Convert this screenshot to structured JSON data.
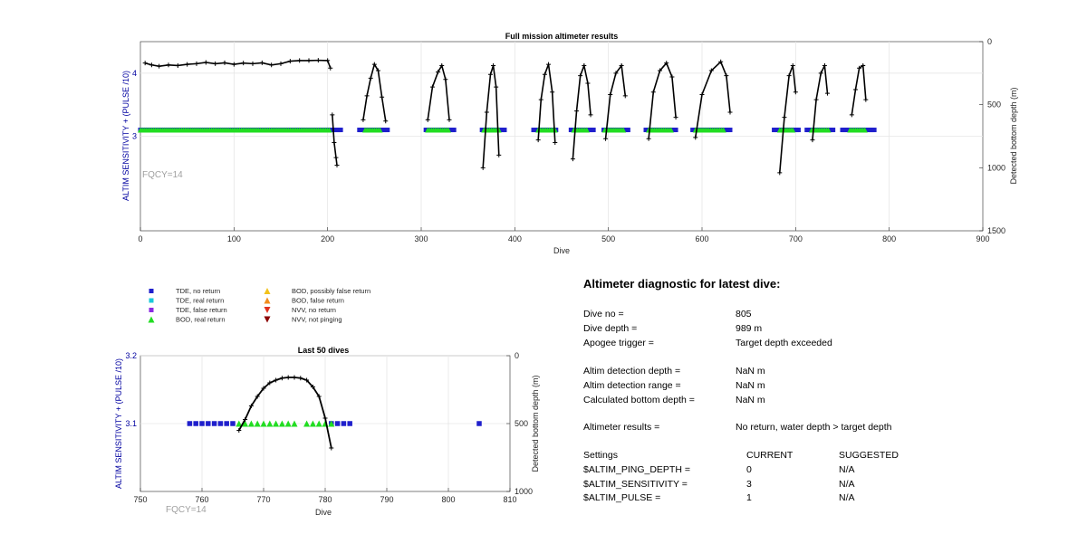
{
  "colors": {
    "tde_no": "#1f1fcc",
    "tde_real": "#19c9d9",
    "tde_false": "#8a2be2",
    "bod_real": "#22dd22",
    "bod_possibly_false": "#f2c21b",
    "bod_false": "#f28c1b",
    "nvv_no": "#e0301e",
    "nvv_not": "#8b0000",
    "line": "#000000",
    "grid": "#e6e6e6",
    "left_axis": "#0000a0"
  },
  "top_chart": {
    "title": "Full mission altimeter results",
    "xlabel": "Dive",
    "ylabel_left": "ALTIM SENSITIVITY + (PULSE /10)",
    "ylabel_right": "Detected bottom depth (m)",
    "xticks": [
      "0",
      "100",
      "200",
      "300",
      "400",
      "500",
      "600",
      "700",
      "800",
      "900"
    ],
    "yticks_left": [
      "3",
      "4"
    ],
    "yticks_right": [
      "0",
      "500",
      "1000",
      "1500"
    ],
    "fqcy": "FQCY=14"
  },
  "bottom_chart": {
    "title": "Last 50 dives",
    "xlabel": "Dive",
    "ylabel_left": "ALTIM SENSITIVITY + (PULSE /10)",
    "ylabel_right": "Detected bottom depth (m)",
    "xticks": [
      "750",
      "760",
      "770",
      "780",
      "790",
      "800",
      "810"
    ],
    "yticks_left": [
      "3.1",
      "3.2"
    ],
    "yticks_right": [
      "0",
      "500",
      "1000"
    ],
    "fqcy": "FQCY=14"
  },
  "legend": [
    {
      "label": "TDE, no return",
      "marker": "square",
      "color": "#1f1fcc"
    },
    {
      "label": "TDE, real return",
      "marker": "square",
      "color": "#19c9d9"
    },
    {
      "label": "TDE, false return",
      "marker": "square",
      "color": "#8a2be2"
    },
    {
      "label": "BOD, real return",
      "marker": "triangle-up",
      "color": "#22dd22"
    },
    {
      "label": "BOD, possibly false return",
      "marker": "triangle-up",
      "color": "#f2c21b"
    },
    {
      "label": "BOD, false return",
      "marker": "triangle-up",
      "color": "#f28c1b"
    },
    {
      "label": "NVV, no return",
      "marker": "triangle-down",
      "color": "#e0301e"
    },
    {
      "label": "NVV, not pinging",
      "marker": "triangle-down",
      "color": "#8b0000"
    }
  ],
  "chart_data": [
    {
      "type": "scatter",
      "title": "Full mission altimeter results",
      "xlabel": "Dive",
      "ylabel": "ALTIM SENSITIVITY + (PULSE /10)",
      "y2label": "Detected bottom depth (m)",
      "xlim": [
        0,
        900
      ],
      "ylim": [
        1.5,
        4.5
      ],
      "y2lim": [
        1500,
        0
      ],
      "grid": true,
      "series": [
        {
          "name": "TDE, no return",
          "marker": "square",
          "values": 3.1,
          "x_ranges": [
            [
              0,
              215
            ],
            [
              234,
              264
            ],
            [
              305,
              335
            ],
            [
              365,
              390
            ],
            [
              420,
              445
            ],
            [
              460,
              485
            ],
            [
              495,
              522
            ],
            [
              540,
              572
            ],
            [
              590,
              630
            ],
            [
              677,
              703
            ],
            [
              712,
              740
            ],
            [
              750,
              785
            ]
          ]
        },
        {
          "name": "BOD, real return",
          "marker": "triangle-up",
          "values": 3.1,
          "x_ranges": [
            [
              0,
              203
            ],
            [
              240,
              257
            ],
            [
              307,
              330
            ],
            [
              367,
              383
            ],
            [
              425,
              443
            ],
            [
              463,
              478
            ],
            [
              496,
              517
            ],
            [
              543,
              568
            ],
            [
              593,
              623
            ],
            [
              683,
              697
            ],
            [
              717,
              735
            ],
            [
              758,
              775
            ]
          ]
        }
      ],
      "depth_segments": [
        {
          "x": [
            5,
            12,
            20,
            30,
            40,
            50,
            60,
            70,
            80,
            90,
            100,
            110,
            120,
            130,
            140,
            150,
            160,
            170,
            180,
            190,
            200,
            203
          ],
          "y": [
            170,
            185,
            195,
            185,
            190,
            180,
            175,
            165,
            175,
            168,
            180,
            170,
            175,
            168,
            185,
            175,
            155,
            150,
            150,
            148,
            150,
            210
          ]
        },
        {
          "x": [
            205,
            207,
            209,
            210
          ],
          "y": [
            580,
            800,
            920,
            980
          ]
        },
        {
          "x": [
            238,
            242,
            246,
            250,
            254,
            258,
            262
          ],
          "y": [
            620,
            430,
            290,
            180,
            230,
            440,
            630
          ]
        },
        {
          "x": [
            307,
            312,
            318,
            322,
            326,
            330
          ],
          "y": [
            620,
            360,
            240,
            190,
            300,
            620
          ]
        },
        {
          "x": [
            366,
            370,
            374,
            377,
            380,
            383
          ],
          "y": [
            1000,
            560,
            260,
            190,
            360,
            900
          ]
        },
        {
          "x": [
            425,
            428,
            432,
            436,
            440,
            443
          ],
          "y": [
            780,
            460,
            260,
            180,
            400,
            800
          ]
        },
        {
          "x": [
            462,
            466,
            470,
            474,
            478,
            481
          ],
          "y": [
            930,
            550,
            270,
            190,
            330,
            580
          ]
        },
        {
          "x": [
            497,
            502,
            508,
            514,
            518
          ],
          "y": [
            770,
            420,
            250,
            190,
            430
          ]
        },
        {
          "x": [
            543,
            548,
            555,
            562,
            568,
            572
          ],
          "y": [
            770,
            400,
            230,
            170,
            280,
            600
          ]
        },
        {
          "x": [
            593,
            600,
            610,
            620,
            626,
            630
          ],
          "y": [
            760,
            420,
            230,
            160,
            270,
            560
          ]
        },
        {
          "x": [
            683,
            688,
            693,
            697,
            700
          ],
          "y": [
            1040,
            600,
            270,
            190,
            400
          ]
        },
        {
          "x": [
            718,
            722,
            727,
            731,
            734
          ],
          "y": [
            780,
            460,
            250,
            190,
            410
          ]
        },
        {
          "x": [
            760,
            764,
            768,
            772,
            775
          ],
          "y": [
            580,
            380,
            210,
            190,
            460
          ]
        }
      ]
    },
    {
      "type": "scatter",
      "title": "Last 50 dives",
      "xlabel": "Dive",
      "ylabel": "ALTIM SENSITIVITY + (PULSE /10)",
      "y2label": "Detected bottom depth (m)",
      "xlim": [
        750,
        810
      ],
      "ylim": [
        3.0,
        3.2
      ],
      "y2lim": [
        1000,
        0
      ],
      "grid": true,
      "series": [
        {
          "name": "TDE, no return",
          "marker": "square",
          "values": 3.1,
          "x": [
            758,
            759,
            760,
            761,
            762,
            763,
            764,
            765,
            781,
            782,
            783,
            784,
            805
          ]
        },
        {
          "name": "BOD, real return",
          "marker": "triangle-up",
          "values": 3.1,
          "x": [
            766,
            767,
            768,
            769,
            770,
            771,
            772,
            773,
            774,
            775,
            777,
            778,
            779,
            780,
            781
          ]
        }
      ],
      "depth_line": {
        "x": [
          766,
          767,
          768,
          769,
          770,
          771,
          772,
          773,
          774,
          775,
          776,
          777,
          778,
          779,
          780,
          781
        ],
        "y": [
          550,
          470,
          370,
          300,
          240,
          200,
          180,
          165,
          160,
          160,
          165,
          180,
          230,
          300,
          460,
          680
        ]
      }
    }
  ],
  "diagnostic": {
    "title": "Altimeter diagnostic for latest dive:",
    "rows": [
      {
        "label": "Dive no =",
        "value": "805"
      },
      {
        "label": "Dive depth =",
        "value": "989 m"
      },
      {
        "label": "Apogee trigger =",
        "value": "Target depth exceeded"
      },
      {
        "label": "Altim detection depth =",
        "value": "NaN m"
      },
      {
        "label": "Altim detection range =",
        "value": "NaN m"
      },
      {
        "label": "Calculated bottom depth =",
        "value": "NaN m"
      },
      {
        "label": "Altimeter results =",
        "value": "No return, water depth > target depth"
      }
    ],
    "settings_header": {
      "label": "Settings",
      "current": "CURRENT",
      "suggested": "SUGGESTED"
    },
    "settings": [
      {
        "label": "$ALTIM_PING_DEPTH =",
        "current": "0",
        "suggested": "N/A"
      },
      {
        "label": "$ALTIM_SENSITIVITY =",
        "current": "3",
        "suggested": "N/A"
      },
      {
        "label": "$ALTIM_PULSE =",
        "current": "1",
        "suggested": "N/A"
      }
    ]
  }
}
